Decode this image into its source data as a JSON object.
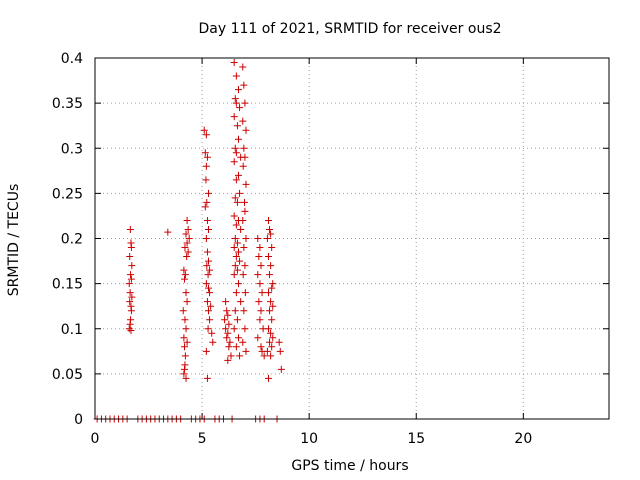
{
  "chart_data": {
    "type": "scatter",
    "title": "Day 111 of 2021, SRMTID for receiver ous2",
    "xlabel": "GPS time / hours",
    "ylabel": "SRMTID / TECUs",
    "xlim": [
      0,
      24
    ],
    "ylim": [
      0,
      0.4
    ],
    "x_ticks": [
      0,
      5,
      10,
      15,
      20
    ],
    "y_ticks": [
      0,
      0.05,
      0.1,
      0.15,
      0.2,
      0.25,
      0.3,
      0.35,
      0.4
    ],
    "x_tick_labels": [
      "0",
      "5",
      "10",
      "15",
      "20"
    ],
    "y_tick_labels": [
      "0",
      "0.05",
      "0.1",
      "0.15",
      "0.2",
      "0.25",
      "0.3",
      "0.35",
      "0.4"
    ],
    "grid": true,
    "marker": "+",
    "color": "#cc0000",
    "series": [
      {
        "points": [
          [
            1.65,
            0.21
          ],
          [
            1.68,
            0.195
          ],
          [
            1.7,
            0.19
          ],
          [
            1.62,
            0.18
          ],
          [
            1.72,
            0.17
          ],
          [
            1.66,
            0.16
          ],
          [
            1.7,
            0.155
          ],
          [
            1.6,
            0.15
          ],
          [
            1.64,
            0.14
          ],
          [
            1.72,
            0.135
          ],
          [
            1.62,
            0.13
          ],
          [
            1.68,
            0.125
          ],
          [
            1.7,
            0.12
          ],
          [
            1.66,
            0.11
          ],
          [
            1.64,
            0.105
          ],
          [
            1.6,
            0.1
          ],
          [
            1.68,
            0.098
          ],
          [
            3.4,
            0.207
          ],
          [
            4.3,
            0.22
          ],
          [
            4.35,
            0.21
          ],
          [
            4.25,
            0.205
          ],
          [
            4.4,
            0.2
          ],
          [
            4.3,
            0.195
          ],
          [
            4.2,
            0.19
          ],
          [
            4.35,
            0.185
          ],
          [
            4.28,
            0.18
          ],
          [
            4.15,
            0.165
          ],
          [
            4.22,
            0.16
          ],
          [
            4.18,
            0.155
          ],
          [
            4.25,
            0.14
          ],
          [
            4.3,
            0.13
          ],
          [
            4.12,
            0.12
          ],
          [
            4.2,
            0.11
          ],
          [
            4.25,
            0.1
          ],
          [
            4.15,
            0.09
          ],
          [
            4.3,
            0.085
          ],
          [
            4.18,
            0.08
          ],
          [
            4.22,
            0.07
          ],
          [
            4.2,
            0.06
          ],
          [
            4.15,
            0.05
          ],
          [
            4.25,
            0.045
          ],
          [
            4.18,
            0.055
          ],
          [
            5.1,
            0.32
          ],
          [
            5.2,
            0.315
          ],
          [
            5.15,
            0.295
          ],
          [
            5.25,
            0.29
          ],
          [
            5.2,
            0.28
          ],
          [
            5.18,
            0.265
          ],
          [
            5.3,
            0.25
          ],
          [
            5.22,
            0.24
          ],
          [
            5.15,
            0.235
          ],
          [
            5.25,
            0.22
          ],
          [
            5.3,
            0.21
          ],
          [
            5.2,
            0.2
          ],
          [
            5.25,
            0.185
          ],
          [
            5.3,
            0.175
          ],
          [
            5.22,
            0.17
          ],
          [
            5.35,
            0.165
          ],
          [
            5.28,
            0.16
          ],
          [
            5.2,
            0.15
          ],
          [
            5.3,
            0.145
          ],
          [
            5.35,
            0.14
          ],
          [
            5.25,
            0.13
          ],
          [
            5.4,
            0.125
          ],
          [
            5.3,
            0.12
          ],
          [
            5.35,
            0.11
          ],
          [
            5.28,
            0.1
          ],
          [
            5.45,
            0.095
          ],
          [
            5.5,
            0.085
          ],
          [
            5.2,
            0.075
          ],
          [
            5.25,
            0.045
          ],
          [
            6.1,
            0.13
          ],
          [
            6.15,
            0.12
          ],
          [
            6.2,
            0.115
          ],
          [
            6.05,
            0.11
          ],
          [
            6.25,
            0.105
          ],
          [
            6.1,
            0.1
          ],
          [
            6.2,
            0.095
          ],
          [
            6.15,
            0.09
          ],
          [
            6.3,
            0.085
          ],
          [
            6.25,
            0.08
          ],
          [
            6.35,
            0.07
          ],
          [
            6.2,
            0.065
          ],
          [
            6.5,
            0.395
          ],
          [
            6.6,
            0.38
          ],
          [
            6.7,
            0.365
          ],
          [
            6.55,
            0.355
          ],
          [
            6.6,
            0.35
          ],
          [
            6.75,
            0.345
          ],
          [
            6.5,
            0.335
          ],
          [
            6.65,
            0.325
          ],
          [
            6.7,
            0.31
          ],
          [
            6.55,
            0.3
          ],
          [
            6.6,
            0.295
          ],
          [
            6.8,
            0.29
          ],
          [
            6.5,
            0.285
          ],
          [
            6.7,
            0.27
          ],
          [
            6.6,
            0.265
          ],
          [
            6.75,
            0.25
          ],
          [
            6.55,
            0.245
          ],
          [
            6.65,
            0.24
          ],
          [
            6.5,
            0.225
          ],
          [
            6.7,
            0.22
          ],
          [
            6.6,
            0.215
          ],
          [
            6.8,
            0.21
          ],
          [
            6.55,
            0.2
          ],
          [
            6.65,
            0.195
          ],
          [
            6.5,
            0.19
          ],
          [
            6.7,
            0.185
          ],
          [
            6.6,
            0.18
          ],
          [
            6.75,
            0.175
          ],
          [
            6.55,
            0.17
          ],
          [
            6.65,
            0.165
          ],
          [
            6.5,
            0.16
          ],
          [
            6.7,
            0.15
          ],
          [
            6.6,
            0.14
          ],
          [
            6.8,
            0.13
          ],
          [
            6.55,
            0.12
          ],
          [
            6.65,
            0.11
          ],
          [
            6.5,
            0.1
          ],
          [
            6.7,
            0.09
          ],
          [
            6.6,
            0.08
          ],
          [
            6.75,
            0.07
          ],
          [
            6.9,
            0.39
          ],
          [
            6.95,
            0.37
          ],
          [
            7.0,
            0.35
          ],
          [
            6.9,
            0.33
          ],
          [
            7.05,
            0.32
          ],
          [
            6.95,
            0.3
          ],
          [
            7.0,
            0.29
          ],
          [
            6.92,
            0.28
          ],
          [
            7.05,
            0.26
          ],
          [
            6.98,
            0.24
          ],
          [
            7.0,
            0.23
          ],
          [
            6.9,
            0.22
          ],
          [
            7.05,
            0.2
          ],
          [
            6.95,
            0.19
          ],
          [
            7.0,
            0.17
          ],
          [
            6.92,
            0.16
          ],
          [
            7.02,
            0.14
          ],
          [
            6.95,
            0.12
          ],
          [
            7.0,
            0.1
          ],
          [
            6.9,
            0.085
          ],
          [
            7.05,
            0.075
          ],
          [
            7.6,
            0.2
          ],
          [
            7.7,
            0.19
          ],
          [
            7.65,
            0.18
          ],
          [
            7.75,
            0.17
          ],
          [
            7.6,
            0.16
          ],
          [
            7.7,
            0.15
          ],
          [
            7.8,
            0.14
          ],
          [
            7.65,
            0.13
          ],
          [
            7.75,
            0.12
          ],
          [
            7.7,
            0.11
          ],
          [
            7.85,
            0.1
          ],
          [
            7.6,
            0.09
          ],
          [
            7.75,
            0.08
          ],
          [
            7.8,
            0.075
          ],
          [
            7.9,
            0.07
          ],
          [
            8.1,
            0.22
          ],
          [
            8.15,
            0.21
          ],
          [
            8.2,
            0.205
          ],
          [
            8.05,
            0.2
          ],
          [
            8.25,
            0.19
          ],
          [
            8.1,
            0.18
          ],
          [
            8.2,
            0.17
          ],
          [
            8.15,
            0.16
          ],
          [
            8.3,
            0.15
          ],
          [
            8.25,
            0.145
          ],
          [
            8.1,
            0.14
          ],
          [
            8.2,
            0.13
          ],
          [
            8.3,
            0.125
          ],
          [
            8.15,
            0.12
          ],
          [
            8.25,
            0.11
          ],
          [
            8.1,
            0.1
          ],
          [
            8.2,
            0.095
          ],
          [
            8.3,
            0.09
          ],
          [
            8.15,
            0.085
          ],
          [
            8.25,
            0.08
          ],
          [
            8.05,
            0.075
          ],
          [
            8.2,
            0.07
          ],
          [
            8.1,
            0.045
          ],
          [
            8.6,
            0.085
          ],
          [
            8.65,
            0.075
          ],
          [
            8.7,
            0.055
          ]
        ]
      },
      {
        "points": [
          [
            0.1,
            0
          ],
          [
            0.3,
            0
          ],
          [
            0.5,
            0
          ],
          [
            0.7,
            0
          ],
          [
            0.9,
            0
          ],
          [
            1.1,
            0
          ],
          [
            1.3,
            0
          ],
          [
            1.5,
            0
          ],
          [
            2.0,
            0
          ],
          [
            2.2,
            0
          ],
          [
            2.4,
            0
          ],
          [
            2.6,
            0
          ],
          [
            2.8,
            0
          ],
          [
            3.0,
            0
          ],
          [
            3.2,
            0
          ],
          [
            3.4,
            0
          ],
          [
            3.6,
            0
          ],
          [
            3.8,
            0
          ],
          [
            4.0,
            0
          ],
          [
            4.5,
            0
          ],
          [
            4.7,
            0
          ],
          [
            4.9,
            0
          ],
          [
            5.1,
            0
          ],
          [
            5.6,
            0
          ],
          [
            5.8,
            0
          ],
          [
            6.0,
            0
          ],
          [
            6.4,
            0
          ],
          [
            7.5,
            0
          ],
          [
            7.7,
            0
          ],
          [
            7.9,
            0
          ],
          [
            8.5,
            0
          ]
        ]
      }
    ]
  }
}
